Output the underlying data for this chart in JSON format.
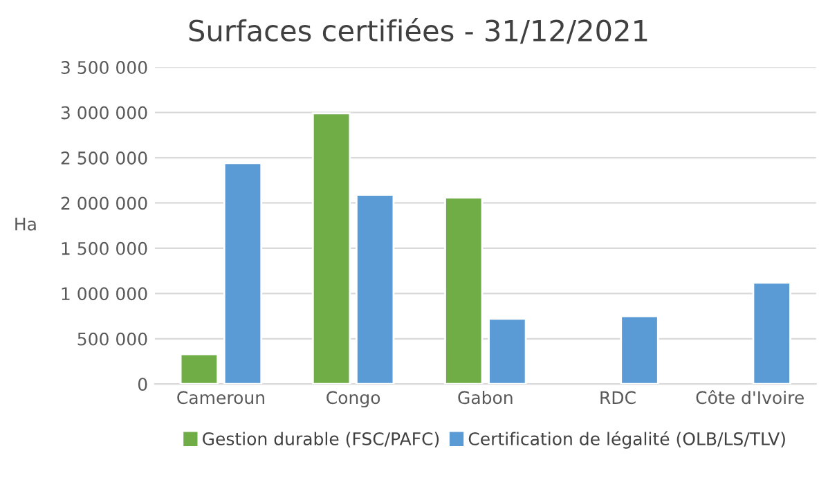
{
  "chart_data": {
    "type": "bar",
    "title": "Surfaces certifiées - 31/12/2021",
    "ylabel": "Ha",
    "categories": [
      "Cameroun",
      "Congo",
      "Gabon",
      "RDC",
      "Côte d'Ivoire"
    ],
    "series": [
      {
        "name": "Gestion durable (FSC/PAFC)",
        "color": "#70ad47",
        "values": [
          330000,
          2990000,
          2060000,
          null,
          null
        ]
      },
      {
        "name": "Certification de légalité (OLB/LS/TLV)",
        "color": "#5b9bd5",
        "values": [
          2440000,
          2090000,
          720000,
          750000,
          1120000
        ]
      }
    ],
    "ylim": [
      0,
      3500000
    ],
    "yticks": [
      0,
      {
        "value": 500000,
        "label": "500 000"
      },
      {
        "value": 1000000,
        "label": "1 000 000"
      },
      {
        "value": 1500000,
        "label": "1 500 000"
      },
      {
        "value": 2000000,
        "label": "2 000 000"
      },
      {
        "value": 2500000,
        "label": "2 500 000"
      },
      {
        "value": 3000000,
        "label": "3 000 000"
      },
      {
        "value": 3500000,
        "label": "3 500 000"
      }
    ],
    "grid": "y",
    "legend": "bottom"
  }
}
